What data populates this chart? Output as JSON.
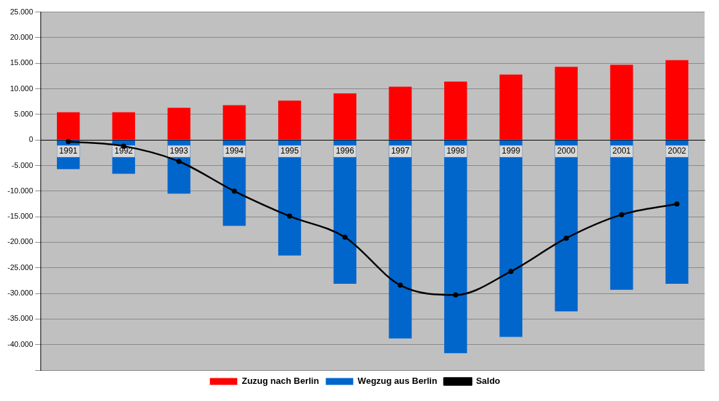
{
  "chart_data": {
    "type": "bar",
    "stacked": true,
    "categories": [
      "1991",
      "1992",
      "1993",
      "1994",
      "1995",
      "1996",
      "1997",
      "1998",
      "1999",
      "2000",
      "2001",
      "2002"
    ],
    "series": [
      {
        "name": "Zuzug nach Berlin",
        "color": "#ff0000",
        "values": [
          5400,
          5400,
          6300,
          6800,
          7700,
          9100,
          10400,
          11400,
          12800,
          14300,
          14700,
          15600
        ]
      },
      {
        "name": "Wegzug aus Berlin",
        "color": "#0066cc",
        "values": [
          -5700,
          -6600,
          -10500,
          -16800,
          -22600,
          -28100,
          -38800,
          -41700,
          -38500,
          -33500,
          -29300,
          -28100
        ]
      },
      {
        "name": "Saldo",
        "type": "line",
        "color": "#000000",
        "marker": "circle",
        "values": [
          -300,
          -1200,
          -4200,
          -10000,
          -14900,
          -19000,
          -28400,
          -30300,
          -25700,
          -19200,
          -14600,
          -12500
        ]
      }
    ],
    "ylim": [
      -45000,
      25000
    ],
    "yticks": [
      {
        "value": -45000,
        "label": null
      },
      {
        "value": -40000,
        "label": "-40.000"
      },
      {
        "value": -35000,
        "label": "-35.000"
      },
      {
        "value": -30000,
        "label": "-30.000"
      },
      {
        "value": -25000,
        "label": "-25.000"
      },
      {
        "value": -20000,
        "label": "-20.000"
      },
      {
        "value": -15000,
        "label": "-15.000"
      },
      {
        "value": -10000,
        "label": "-10.000"
      },
      {
        "value": -5000,
        "label": "-5.000"
      },
      {
        "value": 0,
        "label": "0"
      },
      {
        "value": 5000,
        "label": "5.000"
      },
      {
        "value": 10000,
        "label": "10.000"
      },
      {
        "value": 15000,
        "label": "15.000"
      },
      {
        "value": 20000,
        "label": "20.000"
      },
      {
        "value": 25000,
        "label": "25.000"
      }
    ],
    "grid": "y",
    "legend": "bottom"
  }
}
